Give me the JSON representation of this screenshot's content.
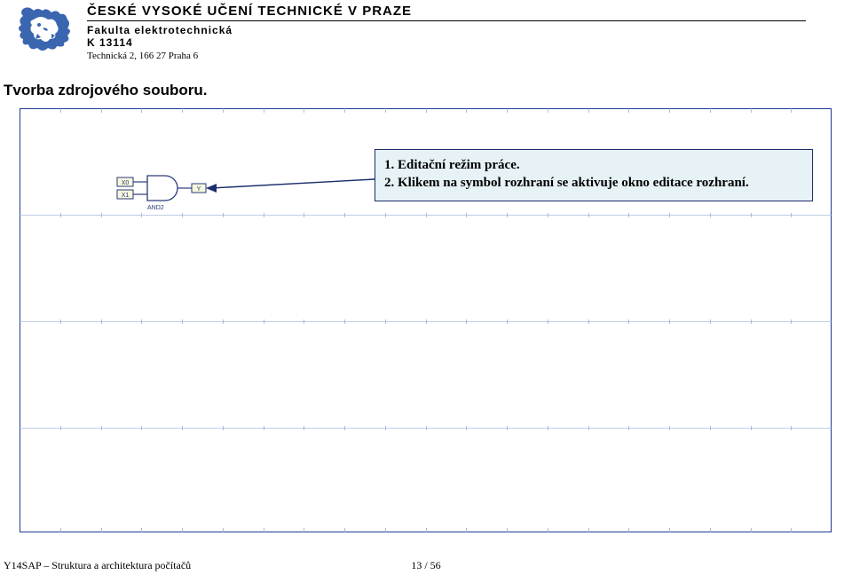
{
  "header": {
    "title": "ČESKÉ VYSOKÉ UČENÍ TECHNICKÉ V PRAZE",
    "faculty": "Fakulta elektrotechnická",
    "dept": "K 13114",
    "address": "Technická 2, 166 27 Praha 6"
  },
  "logo_color": "#3a66b0",
  "section_title": "Tvorba zdrojového souboru.",
  "canvas": {
    "border_color": "#1f3a93",
    "grid_color": "#8da5d6",
    "cols": 20,
    "major_rows": [
      120,
      240,
      360,
      478
    ],
    "tick_height": 5
  },
  "gate": {
    "label": "AND2",
    "in1": "X0",
    "in2": "X1",
    "out": "Y",
    "stroke": "#2a3a78",
    "text_color": "#2a3a78",
    "pin_bg": "#f6f7dd",
    "pin_border": "#2a3a78"
  },
  "callout": {
    "bg": "#e6f2f6",
    "border": "#1b2d6b",
    "line1": "1. Editační režim práce.",
    "line2": "2. Klikem na symbol rozhraní se aktivuje okno editace rozhraní."
  },
  "arrow": {
    "color": "#1b2d6b"
  },
  "footer": {
    "left": "Y14SAP – Struktura a architektura počítačů",
    "center": "13 / 56"
  }
}
